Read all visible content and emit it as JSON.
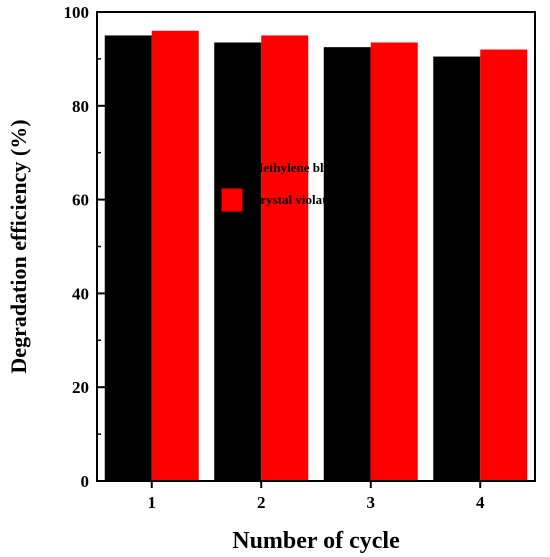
{
  "chart_data": {
    "type": "bar",
    "categories": [
      "1",
      "2",
      "3",
      "4"
    ],
    "series": [
      {
        "name": "Methylene blue",
        "color": "#000000",
        "values": [
          95,
          93.5,
          92.5,
          90.5
        ]
      },
      {
        "name": "Crystal violate",
        "color": "#ff0000",
        "values": [
          96,
          95,
          93.5,
          92
        ]
      }
    ],
    "xlabel": "Number of cycle",
    "ylabel": "Degradation efficiency (%)",
    "ylim": [
      0,
      100
    ],
    "yticks": [
      0,
      20,
      40,
      60,
      80,
      100
    ],
    "grid": false,
    "legend_position": "center"
  }
}
